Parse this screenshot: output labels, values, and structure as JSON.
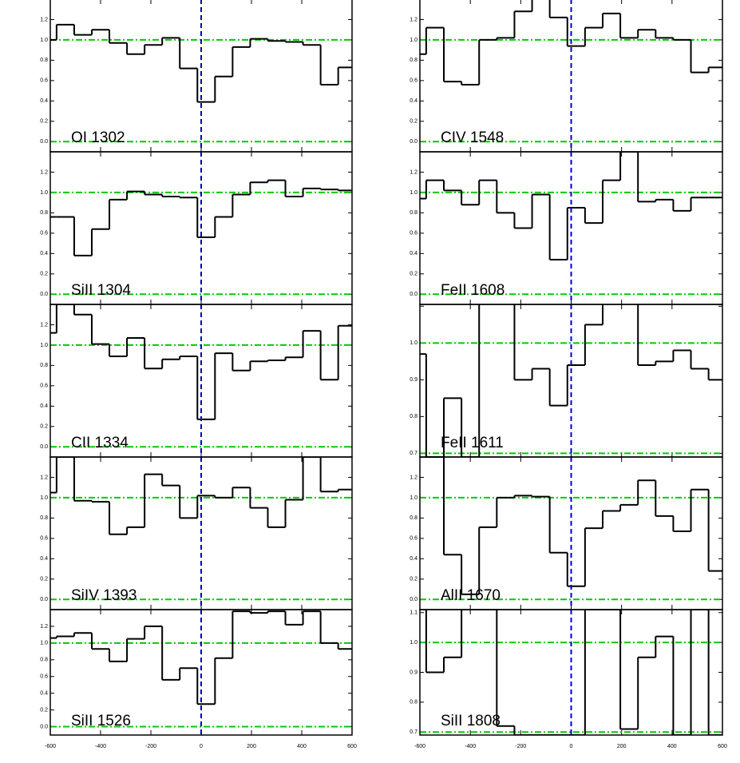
{
  "chart_data": [
    {
      "type": "line",
      "step": "post",
      "label": "OI 1302",
      "color": "#000000",
      "hlines": [
        0,
        1
      ],
      "hline_color": "#00cc00",
      "vline": 0,
      "vline_color": "#0000cc",
      "x": [
        -600,
        -575,
        -505,
        -435,
        -365,
        -295,
        -225,
        -155,
        -85,
        -15,
        55,
        125,
        195,
        265,
        335,
        405,
        475,
        545
      ],
      "values": [
        1.0,
        1.15,
        1.05,
        1.1,
        0.97,
        0.86,
        0.95,
        1.02,
        0.72,
        0.39,
        0.64,
        0.93,
        1.01,
        0.99,
        0.98,
        0.95,
        0.56,
        0.73
      ],
      "xlim": [
        -600,
        600
      ],
      "xticks": [
        -600,
        -400,
        -200,
        0,
        200,
        400,
        600
      ],
      "xtick_labels": false,
      "ylim": [
        -0.1,
        1.4
      ],
      "yticks": [
        {
          "value": 0,
          "label": "0.0"
        },
        0.2,
        0.4,
        0.6,
        0.8,
        {
          "value": 1,
          "label": "1.0"
        },
        1.2
      ]
    },
    {
      "type": "line",
      "step": "post",
      "label": "SiII 1304",
      "color": "#000000",
      "hlines": [
        0,
        1
      ],
      "hline_color": "#00cc00",
      "vline": 0,
      "vline_color": "#0000cc",
      "x": [
        -600,
        -575,
        -505,
        -435,
        -365,
        -295,
        -225,
        -155,
        -85,
        -15,
        55,
        125,
        195,
        265,
        335,
        405,
        475,
        545
      ],
      "values": [
        0.76,
        0.76,
        0.38,
        0.64,
        0.93,
        1.01,
        0.98,
        0.96,
        0.95,
        0.56,
        0.76,
        0.98,
        1.1,
        1.12,
        0.96,
        1.04,
        1.03,
        1.02
      ],
      "xlim": [
        -600,
        600
      ],
      "xticks": [
        -600,
        -400,
        -200,
        0,
        200,
        400,
        600
      ],
      "xtick_labels": false,
      "ylim": [
        -0.1,
        1.4
      ],
      "yticks": [
        {
          "value": 0,
          "label": "0.0"
        },
        0.2,
        0.4,
        0.6,
        0.8,
        {
          "value": 1,
          "label": "1.0"
        },
        1.2
      ]
    },
    {
      "type": "line",
      "step": "post",
      "label": "CII 1334",
      "color": "#000000",
      "hlines": [
        0,
        1
      ],
      "hline_color": "#00cc00",
      "vline": 0,
      "vline_color": "#0000cc",
      "x": [
        -600,
        -575,
        -505,
        -435,
        -365,
        -295,
        -225,
        -155,
        -85,
        -15,
        55,
        125,
        195,
        265,
        335,
        405,
        475,
        545
      ],
      "values": [
        1.12,
        1.4,
        1.3,
        1.01,
        0.89,
        1.07,
        0.77,
        0.86,
        0.89,
        0.27,
        0.92,
        0.75,
        0.84,
        0.85,
        0.88,
        1.14,
        0.66,
        1.19
      ],
      "xlim": [
        -600,
        600
      ],
      "xticks": [
        -600,
        -400,
        -200,
        0,
        200,
        400,
        600
      ],
      "xtick_labels": false,
      "ylim": [
        -0.1,
        1.4
      ],
      "yticks": [
        {
          "value": 0,
          "label": "0.0"
        },
        0.2,
        0.4,
        0.6,
        0.8,
        {
          "value": 1,
          "label": "1.0"
        },
        1.2
      ]
    },
    {
      "type": "line",
      "step": "post",
      "label": "SiIV 1393",
      "color": "#000000",
      "hlines": [
        0,
        1
      ],
      "hline_color": "#00cc00",
      "vline": 0,
      "vline_color": "#0000cc",
      "x": [
        -600,
        -575,
        -505,
        -435,
        -365,
        -295,
        -225,
        -155,
        -85,
        -15,
        55,
        125,
        195,
        265,
        335,
        405,
        475,
        545
      ],
      "values": [
        1.05,
        1.4,
        0.97,
        0.96,
        0.64,
        0.71,
        1.23,
        1.12,
        0.8,
        1.02,
        1.0,
        1.1,
        0.9,
        0.71,
        0.98,
        1.4,
        1.06,
        1.08
      ],
      "xlim": [
        -600,
        600
      ],
      "xticks": [
        -600,
        -400,
        -200,
        0,
        200,
        400,
        600
      ],
      "xtick_labels": false,
      "ylim": [
        -0.1,
        1.4
      ],
      "yticks": [
        {
          "value": 0,
          "label": "0.0"
        },
        0.2,
        0.4,
        0.6,
        0.8,
        {
          "value": 1,
          "label": "1.0"
        },
        1.2
      ]
    },
    {
      "type": "line",
      "step": "post",
      "label": "SiII 1526",
      "color": "#000000",
      "hlines": [
        0,
        1
      ],
      "hline_color": "#00cc00",
      "vline": 0,
      "vline_color": "#0000cc",
      "x": [
        -600,
        -575,
        -505,
        -435,
        -365,
        -295,
        -225,
        -155,
        -85,
        -15,
        55,
        125,
        195,
        265,
        335,
        405,
        475,
        545
      ],
      "values": [
        1.06,
        1.08,
        1.12,
        0.93,
        0.78,
        1.05,
        1.2,
        0.56,
        0.7,
        0.27,
        0.82,
        1.38,
        1.36,
        1.38,
        1.22,
        1.38,
        1.0,
        0.93
      ],
      "xlim": [
        -600,
        600
      ],
      "xticks": [
        -600,
        -400,
        -200,
        0,
        200,
        400,
        600
      ],
      "xtick_labels": true,
      "ylim": [
        -0.1,
        1.4
      ],
      "yticks": [
        {
          "value": 0,
          "label": "0.0"
        },
        0.2,
        0.4,
        0.6,
        0.8,
        {
          "value": 1,
          "label": "1.0"
        },
        1.2
      ]
    },
    {
      "type": "line",
      "step": "post",
      "label": "CIV 1548",
      "color": "#000000",
      "hlines": [
        0,
        1
      ],
      "hline_color": "#00cc00",
      "vline": 0,
      "vline_color": "#0000cc",
      "x": [
        -600,
        -575,
        -505,
        -435,
        -365,
        -295,
        -225,
        -155,
        -85,
        -15,
        55,
        125,
        195,
        265,
        335,
        405,
        475,
        545
      ],
      "values": [
        0.86,
        1.12,
        0.59,
        0.56,
        1.0,
        1.02,
        1.28,
        1.4,
        1.22,
        0.94,
        1.12,
        1.26,
        1.02,
        1.1,
        1.02,
        1.0,
        0.68,
        0.73
      ],
      "xlim": [
        -600,
        600
      ],
      "xticks": [
        -600,
        -400,
        -200,
        0,
        200,
        400,
        600
      ],
      "xtick_labels": false,
      "ylim": [
        -0.1,
        1.4
      ],
      "yticks": [
        {
          "value": 0,
          "label": "0.0"
        },
        0.2,
        0.4,
        0.6,
        0.8,
        {
          "value": 1,
          "label": "1.0"
        },
        1.2
      ]
    },
    {
      "type": "line",
      "step": "post",
      "label": "FeII 1608",
      "color": "#000000",
      "hlines": [
        0,
        1
      ],
      "hline_color": "#00cc00",
      "vline": 0,
      "vline_color": "#0000cc",
      "x": [
        -600,
        -575,
        -505,
        -435,
        -365,
        -295,
        -225,
        -155,
        -85,
        -15,
        55,
        125,
        195,
        265,
        335,
        405,
        475,
        545
      ],
      "values": [
        0.94,
        1.12,
        1.02,
        0.88,
        1.12,
        0.8,
        0.65,
        0.98,
        0.34,
        0.85,
        0.7,
        1.12,
        1.4,
        0.91,
        0.93,
        0.82,
        0.95,
        0.95
      ],
      "xlim": [
        -600,
        600
      ],
      "xticks": [
        -600,
        -400,
        -200,
        0,
        200,
        400,
        600
      ],
      "xtick_labels": false,
      "ylim": [
        -0.1,
        1.4
      ],
      "yticks": [
        {
          "value": 0,
          "label": "0.0"
        },
        0.2,
        0.4,
        0.6,
        0.8,
        {
          "value": 1,
          "label": "1.0"
        },
        1.2
      ]
    },
    {
      "type": "line",
      "step": "post",
      "label": "FeII 1611",
      "color": "#000000",
      "hlines": [
        0.7,
        1
      ],
      "hline_color": "#00cc00",
      "vline": 0,
      "vline_color": "#0000cc",
      "x": [
        -600,
        -575,
        -505,
        -435,
        -365,
        -295,
        -225,
        -155,
        -85,
        -15,
        55,
        125,
        195,
        265,
        335,
        405,
        475,
        545
      ],
      "values": [
        0.97,
        0.69,
        0.85,
        0.69,
        1.11,
        1.11,
        0.9,
        0.93,
        0.83,
        0.94,
        1.05,
        1.11,
        1.11,
        0.94,
        0.95,
        0.98,
        0.93,
        0.9
      ],
      "xlim": [
        -600,
        600
      ],
      "xticks": [
        -600,
        -400,
        -200,
        0,
        200,
        400,
        600
      ],
      "xtick_labels": false,
      "ylim": [
        0.69,
        1.105
      ],
      "yticks": [
        0.7,
        0.8,
        0.9,
        {
          "value": 1,
          "label": "1.0"
        },
        1.1
      ]
    },
    {
      "type": "line",
      "step": "post",
      "label": "AlII 1670",
      "color": "#000000",
      "hlines": [
        0,
        1
      ],
      "hline_color": "#00cc00",
      "vline": 0,
      "vline_color": "#0000cc",
      "x": [
        -600,
        -575,
        -505,
        -435,
        -365,
        -295,
        -225,
        -155,
        -85,
        -15,
        55,
        125,
        195,
        265,
        335,
        405,
        475,
        545
      ],
      "values": [
        1.4,
        1.4,
        0.44,
        0.05,
        0.71,
        1.0,
        1.02,
        1.01,
        0.46,
        0.13,
        0.7,
        0.87,
        0.93,
        1.17,
        0.82,
        0.67,
        1.08,
        0.28
      ],
      "xlim": [
        -600,
        600
      ],
      "xticks": [
        -600,
        -400,
        -200,
        0,
        200,
        400,
        600
      ],
      "xtick_labels": false,
      "ylim": [
        -0.1,
        1.4
      ],
      "yticks": [
        {
          "value": 0,
          "label": "0.0"
        },
        0.2,
        0.4,
        0.6,
        0.8,
        {
          "value": 1,
          "label": "1.0"
        },
        1.2
      ]
    },
    {
      "type": "line",
      "step": "post",
      "label": "SiII 1808",
      "color": "#000000",
      "hlines": [
        0.7,
        1
      ],
      "hline_color": "#00cc00",
      "vline": 0,
      "vline_color": "#0000cc",
      "x": [
        -600,
        -575,
        -505,
        -435,
        -365,
        -295,
        -225,
        -155,
        -85,
        -15,
        55,
        125,
        195,
        265,
        335,
        405,
        475,
        545
      ],
      "values": [
        1.11,
        0.9,
        0.95,
        1.11,
        1.11,
        0.72,
        0.69,
        0.69,
        0.69,
        0.69,
        1.11,
        1.11,
        0.71,
        0.95,
        1.02,
        0.69,
        1.11,
        0.69
      ],
      "xlim": [
        -600,
        600
      ],
      "xticks": [
        -600,
        -400,
        -200,
        0,
        200,
        400,
        600
      ],
      "xtick_labels": true,
      "ylim": [
        0.69,
        1.11
      ],
      "yticks": [
        0.7,
        0.8,
        0.9,
        {
          "value": 1,
          "label": "1.0"
        },
        1.1
      ]
    }
  ]
}
